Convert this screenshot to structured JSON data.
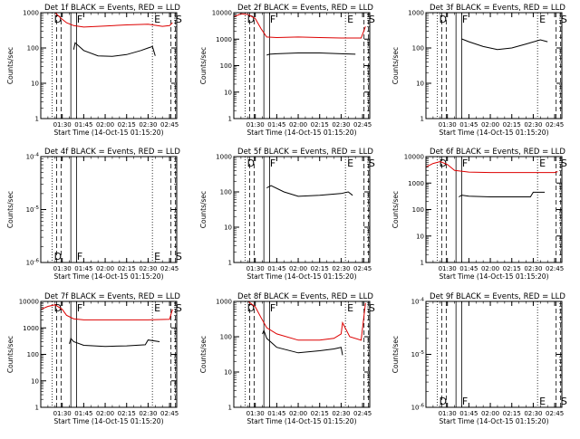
{
  "colors": {
    "events": "#000000",
    "lld": "#dd0000",
    "axis": "#000000",
    "background": "#ffffff"
  },
  "chart_data": [
    {
      "type": "line",
      "title": "Det 1f BLACK = Events, RED = LLD",
      "xlabel": "Start Time (14-Oct-15 01:15:20)",
      "ylabel": "Counts/sec",
      "yscale": "log",
      "ylim": [
        1,
        1000
      ],
      "yticks": [
        "1",
        "10",
        "100",
        "1000"
      ],
      "xticks": [
        "01:30",
        "01:45",
        "02:00",
        "02:15",
        "02:30",
        "02:45"
      ],
      "markers": [
        {
          "label": "D",
          "x": "01:23"
        },
        {
          "label": "F",
          "x": "01:39"
        },
        {
          "label": "E",
          "x": "02:33"
        },
        {
          "label": "S",
          "x": "02:48"
        }
      ],
      "series": [
        {
          "color": "lld",
          "x": [
            "01:15",
            "01:20",
            "01:25",
            "01:29",
            "01:33",
            "01:38",
            "01:45",
            "02:00",
            "02:15",
            "02:30",
            "02:40",
            "02:45",
            "02:47"
          ],
          "values": [
            1100,
            1200,
            1000,
            700,
            520,
            430,
            390,
            420,
            450,
            470,
            410,
            430,
            520
          ]
        },
        {
          "color": "events",
          "x": [
            "01:38",
            "01:39",
            "01:45",
            "01:55",
            "02:05",
            "02:15",
            "02:25",
            "02:30",
            "02:33",
            "02:35"
          ],
          "values": [
            90,
            140,
            85,
            60,
            58,
            65,
            85,
            100,
            110,
            60
          ]
        }
      ]
    },
    {
      "type": "line",
      "title": "Det 2f BLACK = Events, RED = LLD",
      "xlabel": "Start Time (14-Oct-15 01:15:20)",
      "ylabel": "Counts/sec",
      "yscale": "log",
      "ylim": [
        1,
        10000
      ],
      "yticks": [
        "1",
        "10",
        "100",
        "1000",
        "10000"
      ],
      "xticks": [
        "01:30",
        "01:45",
        "02:00",
        "02:15",
        "02:30",
        "02:45"
      ],
      "markers": [
        {
          "label": "D",
          "x": "01:23"
        },
        {
          "label": "F",
          "x": "01:39"
        },
        {
          "label": "E",
          "x": "02:33"
        },
        {
          "label": "S",
          "x": "02:48"
        }
      ],
      "series": [
        {
          "color": "lld",
          "x": [
            "01:15",
            "01:20",
            "01:25",
            "01:30",
            "01:34",
            "01:38",
            "01:45",
            "02:00",
            "02:15",
            "02:30",
            "02:44",
            "02:47"
          ],
          "values": [
            7000,
            9000,
            8500,
            6000,
            2500,
            1200,
            1150,
            1200,
            1150,
            1100,
            1100,
            3000
          ]
        },
        {
          "color": "events",
          "x": [
            "01:38",
            "01:40",
            "01:45",
            "02:00",
            "02:15",
            "02:30",
            "02:40"
          ],
          "values": [
            250,
            270,
            280,
            300,
            300,
            280,
            270
          ]
        }
      ]
    },
    {
      "type": "line",
      "title": "Det 3f BLACK = Events, RED = LLD",
      "xlabel": "Start Time (14-Oct-15 01:15:20)",
      "ylabel": "Counts/sec",
      "yscale": "log",
      "ylim": [
        1,
        1000
      ],
      "yticks": [
        "1",
        "10",
        "100",
        "1000"
      ],
      "xticks": [
        "01:30",
        "01:45",
        "02:00",
        "02:15",
        "02:30",
        "02:45"
      ],
      "markers": [
        {
          "label": "D",
          "x": "01:23"
        },
        {
          "label": "F",
          "x": "01:39"
        },
        {
          "label": "E",
          "x": "02:33"
        },
        {
          "label": "S",
          "x": "02:48"
        }
      ],
      "series": [
        {
          "color": "events",
          "x": [
            "01:40",
            "01:45",
            "01:55",
            "02:05",
            "02:15",
            "02:25",
            "02:35",
            "02:40"
          ],
          "values": [
            180,
            150,
            110,
            90,
            100,
            130,
            170,
            150
          ]
        }
      ]
    },
    {
      "type": "line",
      "title": "Det 4f BLACK = Events, RED = LLD",
      "xlabel": "Start Time (14-Oct-15 01:15:20)",
      "ylabel": "Counts/sec",
      "yscale": "log",
      "ylim": [
        1e-06,
        0.0001
      ],
      "yticks": [
        "10^-6",
        "10^-5",
        "10^-4"
      ],
      "xticks": [
        "01:30",
        "01:45",
        "02:00",
        "02:15",
        "02:30",
        "02:45"
      ],
      "markers": [
        {
          "label": "D",
          "x": "01:23"
        },
        {
          "label": "F",
          "x": "01:39"
        },
        {
          "label": "E",
          "x": "02:33"
        },
        {
          "label": "S",
          "x": "02:48"
        }
      ],
      "series": []
    },
    {
      "type": "line",
      "title": "Det 5f BLACK = Events, RED = LLD",
      "xlabel": "Start Time (14-Oct-15 01:15:20)",
      "ylabel": "Counts/sec",
      "yscale": "log",
      "ylim": [
        1,
        1000
      ],
      "yticks": [
        "1",
        "10",
        "100",
        "1000"
      ],
      "xticks": [
        "01:30",
        "01:45",
        "02:00",
        "02:15",
        "02:30",
        "02:45"
      ],
      "markers": [
        {
          "label": "D",
          "x": "01:23"
        },
        {
          "label": "F",
          "x": "01:39"
        },
        {
          "label": "E",
          "x": "02:33"
        },
        {
          "label": "S",
          "x": "02:48"
        }
      ],
      "series": [
        {
          "color": "lld",
          "x": [
            "01:15",
            "01:25",
            "01:38",
            "02:00",
            "02:30",
            "02:47"
          ],
          "values": [
            1000,
            1000,
            1000,
            1000,
            1000,
            1000
          ]
        },
        {
          "color": "events",
          "x": [
            "01:38",
            "01:41",
            "01:50",
            "02:00",
            "02:15",
            "02:30",
            "02:35",
            "02:38"
          ],
          "values": [
            130,
            150,
            100,
            75,
            80,
            90,
            100,
            80
          ]
        }
      ]
    },
    {
      "type": "line",
      "title": "Det 6f BLACK = Events, RED = LLD",
      "xlabel": "Start Time (14-Oct-15 01:15:20)",
      "ylabel": "Counts/sec",
      "yscale": "log",
      "ylim": [
        1,
        10000
      ],
      "yticks": [
        "1",
        "10",
        "100",
        "1000",
        "10000"
      ],
      "xticks": [
        "01:30",
        "01:45",
        "02:00",
        "02:15",
        "02:30",
        "02:45"
      ],
      "markers": [
        {
          "label": "D",
          "x": "01:23"
        },
        {
          "label": "F",
          "x": "01:39"
        },
        {
          "label": "E",
          "x": "02:33"
        },
        {
          "label": "S",
          "x": "02:48"
        }
      ],
      "series": [
        {
          "color": "lld",
          "x": [
            "01:15",
            "01:20",
            "01:25",
            "01:30",
            "01:35",
            "01:45",
            "02:00",
            "02:15",
            "02:30",
            "02:45",
            "02:47"
          ],
          "values": [
            4000,
            5500,
            6500,
            5000,
            3000,
            2600,
            2500,
            2500,
            2500,
            2500,
            2700
          ]
        },
        {
          "color": "events",
          "x": [
            "01:38",
            "01:40",
            "01:45",
            "02:00",
            "02:15",
            "02:28",
            "02:30",
            "02:38"
          ],
          "values": [
            300,
            350,
            320,
            300,
            300,
            300,
            450,
            450
          ]
        }
      ]
    },
    {
      "type": "line",
      "title": "Det 7f BLACK = Events, RED = LLD",
      "xlabel": "Start Time (14-Oct-15 01:15:20)",
      "ylabel": "Counts/sec",
      "yscale": "log",
      "ylim": [
        1,
        10000
      ],
      "yticks": [
        "1",
        "10",
        "100",
        "1000",
        "10000"
      ],
      "xticks": [
        "01:30",
        "01:45",
        "02:00",
        "02:15",
        "02:30",
        "02:45"
      ],
      "markers": [
        {
          "label": "D",
          "x": "01:23"
        },
        {
          "label": "F",
          "x": "01:39"
        },
        {
          "label": "E",
          "x": "02:33"
        },
        {
          "label": "S",
          "x": "02:48"
        }
      ],
      "series": [
        {
          "color": "lld",
          "x": [
            "01:15",
            "01:20",
            "01:25",
            "01:30",
            "01:33",
            "01:38",
            "01:45",
            "02:00",
            "02:15",
            "02:30",
            "02:45",
            "02:47"
          ],
          "values": [
            5000,
            6500,
            7500,
            5000,
            3000,
            2200,
            2000,
            2000,
            2000,
            2000,
            2100,
            5000
          ]
        },
        {
          "color": "events",
          "x": [
            "01:35",
            "01:36",
            "01:38",
            "01:45",
            "02:00",
            "02:15",
            "02:28",
            "02:30",
            "02:38"
          ],
          "values": [
            250,
            400,
            300,
            220,
            200,
            210,
            230,
            350,
            300
          ]
        }
      ]
    },
    {
      "type": "line",
      "title": "Det 8f BLACK = Events, RED = LLD",
      "xlabel": "Start Time (14-Oct-15 01:15:20)",
      "ylabel": "Counts/sec",
      "yscale": "log",
      "ylim": [
        1,
        1000
      ],
      "yticks": [
        "1",
        "10",
        "100",
        "1000"
      ],
      "xticks": [
        "01:30",
        "01:45",
        "02:00",
        "02:15",
        "02:30",
        "02:45"
      ],
      "markers": [
        {
          "label": "D",
          "x": "01:23"
        },
        {
          "label": "F",
          "x": "01:39"
        },
        {
          "label": "E",
          "x": "02:33"
        },
        {
          "label": "S",
          "x": "02:48"
        }
      ],
      "series": [
        {
          "color": "lld",
          "x": [
            "01:15",
            "01:25",
            "01:30",
            "01:34",
            "01:38",
            "01:45",
            "02:00",
            "02:15",
            "02:25",
            "02:30",
            "02:31",
            "02:36",
            "02:44",
            "02:47"
          ],
          "values": [
            1000,
            1000,
            700,
            350,
            180,
            120,
            80,
            80,
            90,
            120,
            250,
            100,
            80,
            900
          ]
        },
        {
          "color": "events",
          "x": [
            "01:35",
            "01:36",
            "01:38",
            "01:45",
            "02:00",
            "02:15",
            "02:25",
            "02:30",
            "02:31"
          ],
          "values": [
            120,
            150,
            90,
            50,
            35,
            40,
            45,
            50,
            30
          ]
        }
      ]
    },
    {
      "type": "line",
      "title": "Det 9f BLACK = Events, RED = LLD",
      "xlabel": "Start Time (14-Oct-15 01:15:20)",
      "ylabel": "Counts/sec",
      "yscale": "log",
      "ylim": [
        1e-06,
        0.0001
      ],
      "yticks": [
        "10^-6",
        "10^-5",
        "10^-4"
      ],
      "xticks": [
        "01:30",
        "01:45",
        "02:00",
        "02:15",
        "02:30",
        "02:45"
      ],
      "markers": [
        {
          "label": "D",
          "x": "01:23"
        },
        {
          "label": "F",
          "x": "01:39"
        },
        {
          "label": "E",
          "x": "02:33"
        },
        {
          "label": "S",
          "x": "02:48"
        }
      ],
      "series": []
    }
  ]
}
